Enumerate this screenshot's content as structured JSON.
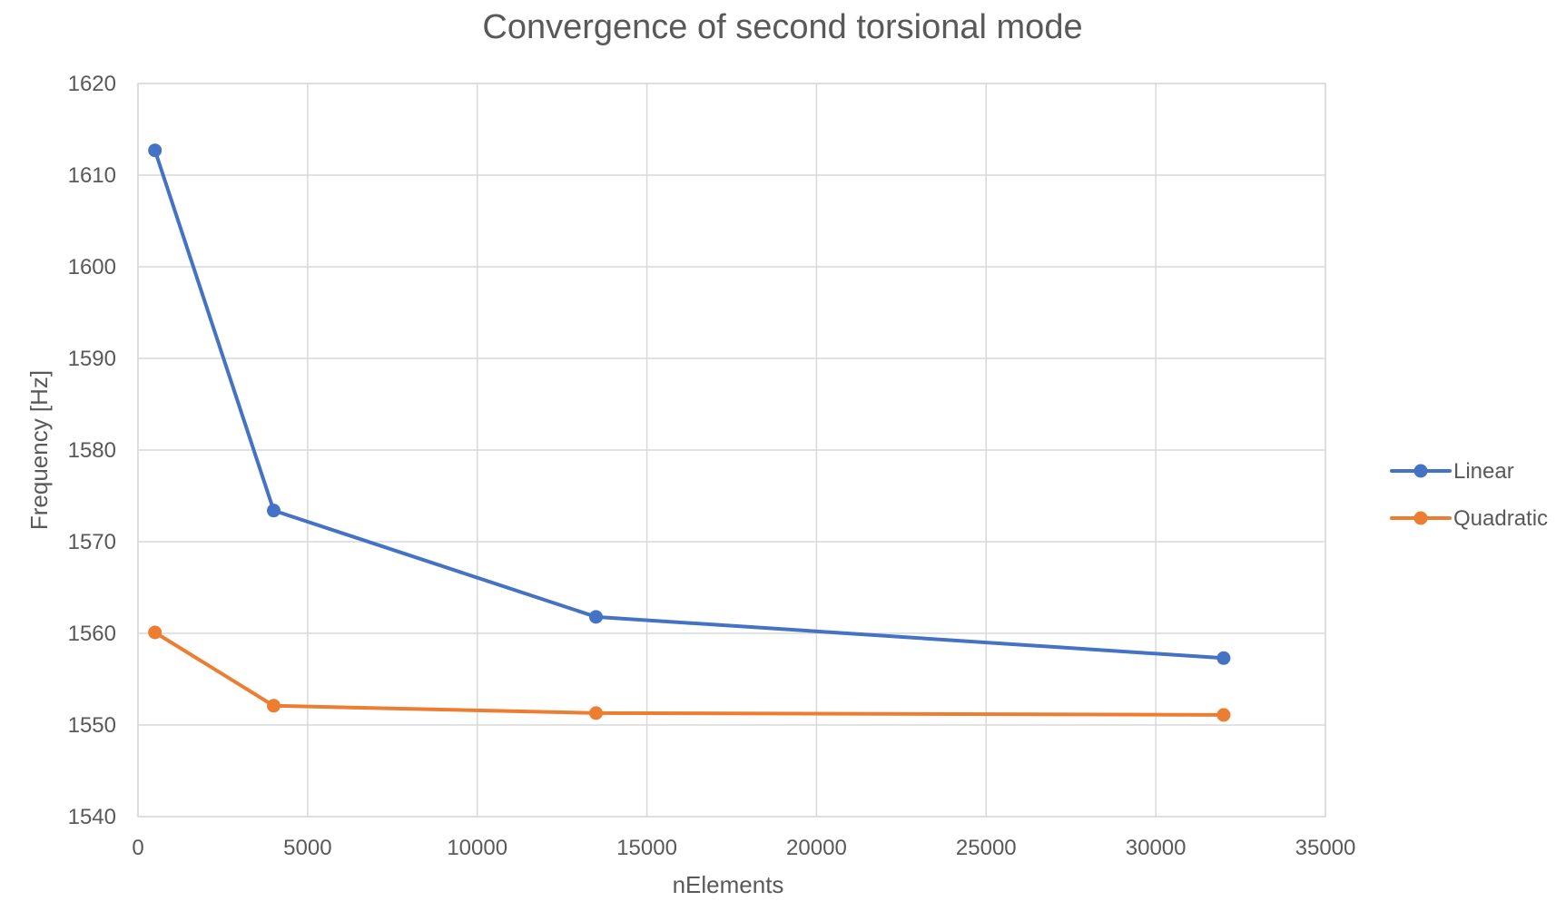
{
  "chart_data": {
    "type": "line",
    "title": "Convergence of second torsional mode",
    "xlabel": "nElements",
    "ylabel": "Frequency [Hz]",
    "xlim": [
      0,
      35000
    ],
    "ylim": [
      1540,
      1620
    ],
    "xticks": [
      0,
      5000,
      10000,
      15000,
      20000,
      25000,
      30000,
      35000
    ],
    "yticks": [
      1540,
      1550,
      1560,
      1570,
      1580,
      1590,
      1600,
      1610,
      1620
    ],
    "grid": true,
    "legend_position": "right",
    "series": [
      {
        "name": "Linear",
        "color": "#4472C4",
        "x": [
          500,
          4000,
          13500,
          32000
        ],
        "y": [
          1612.7,
          1573.4,
          1561.8,
          1557.3
        ]
      },
      {
        "name": "Quadratic",
        "color": "#ED7D31",
        "x": [
          500,
          4000,
          13500,
          32000
        ],
        "y": [
          1560.1,
          1552.1,
          1551.3,
          1551.1
        ]
      }
    ]
  }
}
